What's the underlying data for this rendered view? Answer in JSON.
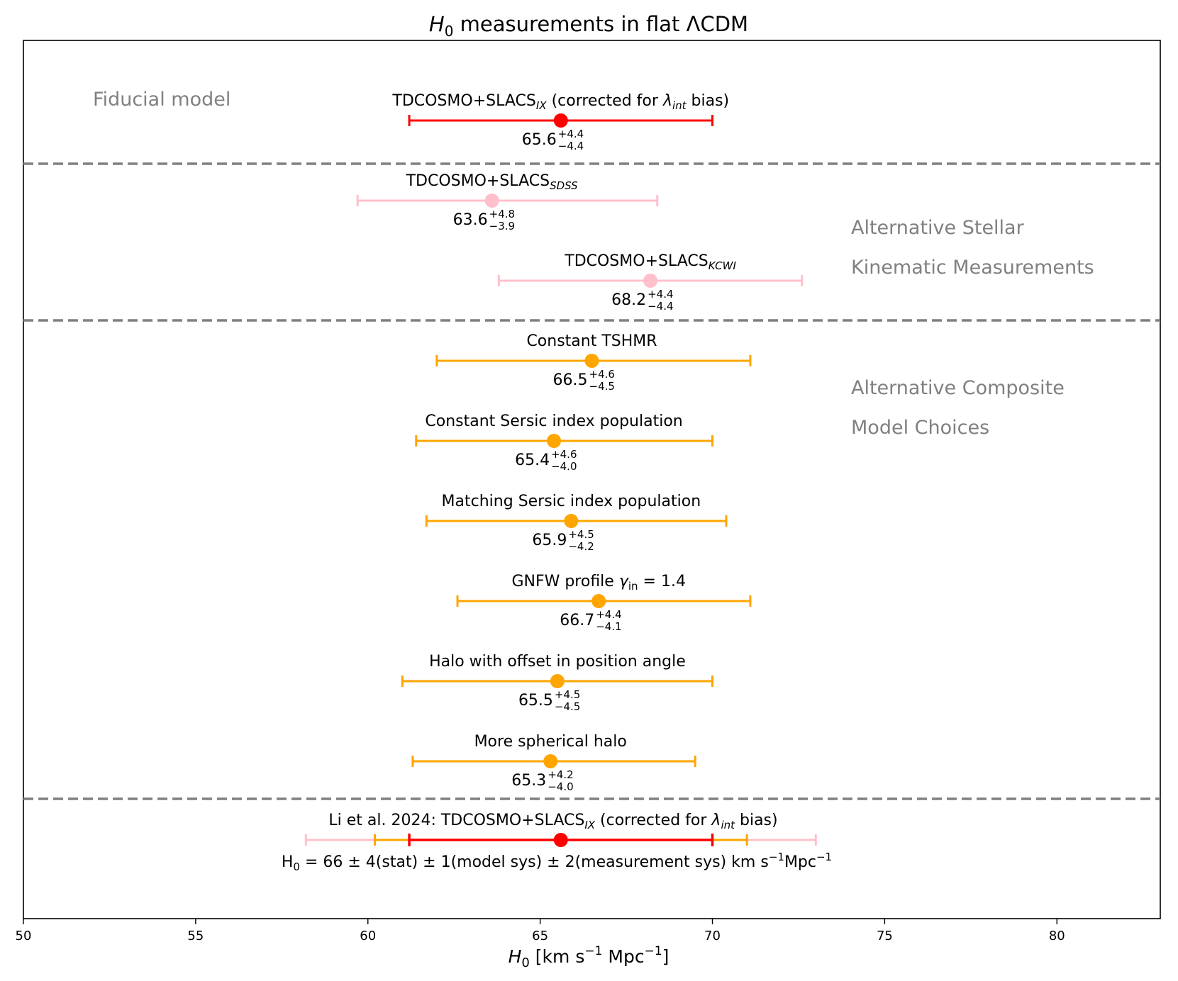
{
  "chart_data": {
    "type": "errorbar",
    "title_parts": [
      "H",
      "0",
      " measurements in flat ΛCDM"
    ],
    "xlabel_parts": [
      "H",
      "0",
      " [km s",
      "−1",
      " Mpc",
      "−1",
      "]"
    ],
    "xlim": [
      50,
      83
    ],
    "xticks": [
      50,
      55,
      60,
      65,
      70,
      75,
      80
    ],
    "colors": {
      "fiducial": "#ff0000",
      "kinematic": "#ffc0cb",
      "composite": "#ffa500",
      "divider": "#808080",
      "section_label": "#808080"
    },
    "section_labels": [
      {
        "text": "Fiducial model"
      },
      {
        "text": "Alternative Stellar"
      },
      {
        "text": "Kinematic Measurements"
      },
      {
        "text": "Alternative Composite"
      },
      {
        "text": "Model Choices"
      }
    ],
    "points": [
      {
        "group": "fiducial",
        "label": "TDCOSMO+SLACS",
        "label_sub": "IX",
        "label_rest": " (corrected for ",
        "label_lambda": "λ",
        "label_lambda_sub": "int",
        "label_end": " bias)",
        "value": 65.6,
        "plus": 4.4,
        "minus": 4.4,
        "value_text": "65.6",
        "plus_text": "+4.4",
        "minus_text": "−4.4"
      },
      {
        "group": "kinematic",
        "label": "TDCOSMO+SLACS",
        "label_sub": "SDSS",
        "value": 63.6,
        "plus": 4.8,
        "minus": 3.9,
        "value_text": "63.6",
        "plus_text": "+4.8",
        "minus_text": "−3.9"
      },
      {
        "group": "kinematic",
        "label": "TDCOSMO+SLACS",
        "label_sub": "KCWI",
        "value": 68.2,
        "plus": 4.4,
        "minus": 4.4,
        "value_text": "68.2",
        "plus_text": "+4.4",
        "minus_text": "−4.4"
      },
      {
        "group": "composite",
        "label": "Constant TSHMR",
        "value": 66.5,
        "plus": 4.6,
        "minus": 4.5,
        "value_text": "66.5",
        "plus_text": "+4.6",
        "minus_text": "−4.5"
      },
      {
        "group": "composite",
        "label": "Constant Sersic index population",
        "value": 65.4,
        "plus": 4.6,
        "minus": 4.0,
        "value_text": "65.4",
        "plus_text": "+4.6",
        "minus_text": "−4.0"
      },
      {
        "group": "composite",
        "label": "Matching Sersic index population",
        "value": 65.9,
        "plus": 4.5,
        "minus": 4.2,
        "value_text": "65.9",
        "plus_text": "+4.5",
        "minus_text": "−4.2"
      },
      {
        "group": "composite",
        "label": "GNFW profile ",
        "label_gamma": "γ",
        "label_gamma_sub": "in",
        "label_end": " = 1.4",
        "value": 66.7,
        "plus": 4.4,
        "minus": 4.1,
        "value_text": "66.7",
        "plus_text": "+4.4",
        "minus_text": "−4.1"
      },
      {
        "group": "composite",
        "label": "Halo with offset in position angle",
        "value": 65.5,
        "plus": 4.5,
        "minus": 4.5,
        "value_text": "65.5",
        "plus_text": "+4.5",
        "minus_text": "−4.5"
      },
      {
        "group": "composite",
        "label": "More spherical halo",
        "value": 65.3,
        "plus": 4.2,
        "minus": 4.0,
        "value_text": "65.3",
        "plus_text": "+4.2",
        "minus_text": "−4.0"
      }
    ],
    "final": {
      "label": "Li et al. 2024: TDCOSMO+SLACS",
      "label_sub": "IX",
      "label_rest": " (corrected for ",
      "label_lambda": "λ",
      "label_lambda_sub": "int",
      "label_end": " bias)",
      "value": 65.6,
      "stat_range": [
        61.2,
        70.0
      ],
      "model_sys_range": [
        60.2,
        71.0
      ],
      "meas_sys_range": [
        58.2,
        73.0
      ],
      "summary_parts": [
        "H",
        "0",
        " = 66 ± 4(stat) ± 1(model sys) ± 2(measurement sys) km s",
        "−1",
        "Mpc",
        "−1"
      ]
    }
  }
}
